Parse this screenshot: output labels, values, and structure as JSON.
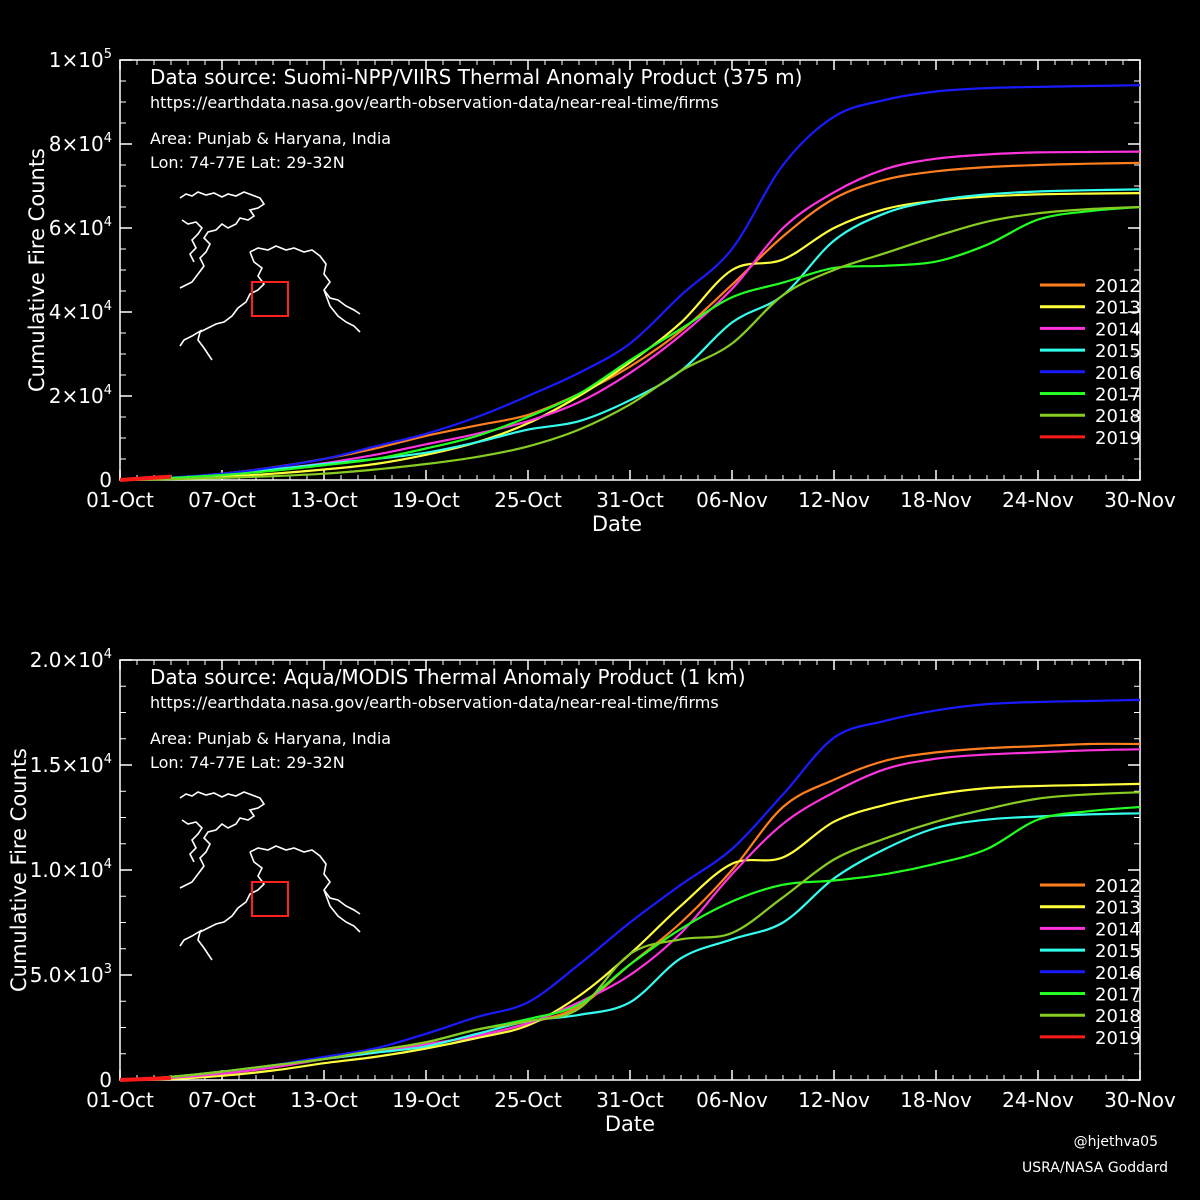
{
  "credits": {
    "handle": "@hjethva05",
    "org": "USRA/NASA Goddard"
  },
  "colors": {
    "2012": "#ff7f1e",
    "2013": "#ffff3c",
    "2014": "#ff33dd",
    "2015": "#33ffee",
    "2016": "#1a1aff",
    "2017": "#22ff22",
    "2018": "#88cc22",
    "2019": "#ff1a1a",
    "map_box": "#ff2020",
    "map_line": "#ffffff"
  },
  "chart_data": [
    {
      "type": "line",
      "title": "Data source: Suomi-NPP/VIIRS Thermal Anomaly Product (375 m)",
      "url": "https://earthdata.nasa.gov/earth-observation-data/near-real-time/firms",
      "area": "Area: Punjab & Haryana, India",
      "lonlat": "Lon: 74-77E Lat: 29-32N",
      "xlabel": "Date",
      "ylabel": "Cumulative Fire Counts",
      "xlim": [
        0,
        60
      ],
      "ylim": [
        0,
        100000
      ],
      "x_ticks": [
        {
          "day": 0,
          "label": "01-Oct"
        },
        {
          "day": 6,
          "label": "07-Oct"
        },
        {
          "day": 12,
          "label": "13-Oct"
        },
        {
          "day": 18,
          "label": "19-Oct"
        },
        {
          "day": 24,
          "label": "25-Oct"
        },
        {
          "day": 30,
          "label": "31-Oct"
        },
        {
          "day": 36,
          "label": "06-Nov"
        },
        {
          "day": 42,
          "label": "12-Nov"
        },
        {
          "day": 48,
          "label": "18-Nov"
        },
        {
          "day": 54,
          "label": "24-Nov"
        },
        {
          "day": 60,
          "label": "30-Nov"
        }
      ],
      "y_ticks": [
        {
          "value": 0,
          "mant": "0",
          "exp": ""
        },
        {
          "value": 20000,
          "mant": "2×10",
          "exp": "4"
        },
        {
          "value": 40000,
          "mant": "4×10",
          "exp": "4"
        },
        {
          "value": 60000,
          "mant": "6×10",
          "exp": "4"
        },
        {
          "value": 80000,
          "mant": "8×10",
          "exp": "4"
        },
        {
          "value": 100000,
          "mant": "1×10",
          "exp": "5"
        }
      ],
      "x_days": [
        0,
        3,
        6,
        9,
        12,
        15,
        18,
        21,
        24,
        27,
        30,
        33,
        36,
        39,
        42,
        45,
        48,
        51,
        54,
        57,
        60
      ],
      "series": [
        {
          "name": "2012",
          "values": [
            0,
            500,
            1500,
            3000,
            5000,
            7500,
            10500,
            13000,
            15500,
            20500,
            27000,
            35500,
            46500,
            58000,
            67000,
            71500,
            73500,
            74500,
            75000,
            75300,
            75500
          ]
        },
        {
          "name": "2013",
          "values": [
            0,
            300,
            800,
            1500,
            2500,
            3800,
            6000,
            9000,
            13500,
            20000,
            28000,
            37500,
            50000,
            52500,
            60000,
            64500,
            66500,
            67500,
            68000,
            68200,
            68300
          ]
        },
        {
          "name": "2014",
          "values": [
            0,
            400,
            1200,
            2500,
            4000,
            6000,
            8500,
            11000,
            14000,
            18500,
            25500,
            34500,
            45500,
            60000,
            68500,
            74000,
            76500,
            77500,
            78000,
            78100,
            78200
          ]
        },
        {
          "name": "2015",
          "values": [
            0,
            500,
            1300,
            2500,
            3800,
            5000,
            6500,
            9000,
            12000,
            14000,
            19000,
            26000,
            37500,
            44000,
            57000,
            63500,
            66500,
            68000,
            68700,
            69000,
            69200
          ]
        },
        {
          "name": "2016",
          "values": [
            0,
            600,
            1500,
            3000,
            5000,
            8000,
            11000,
            15000,
            20000,
            25500,
            32500,
            44000,
            55000,
            75000,
            86500,
            90500,
            92500,
            93300,
            93600,
            93800,
            94000
          ]
        },
        {
          "name": "2017",
          "values": [
            0,
            500,
            1200,
            2200,
            3500,
            5000,
            7500,
            10500,
            15000,
            20500,
            28500,
            36000,
            43500,
            47000,
            50500,
            51000,
            52000,
            56000,
            62000,
            64000,
            65000
          ]
        },
        {
          "name": "2018",
          "values": [
            0,
            200,
            500,
            900,
            1500,
            2500,
            3800,
            5500,
            8000,
            12000,
            18000,
            26000,
            32500,
            44000,
            50000,
            54000,
            58000,
            61500,
            63500,
            64500,
            65000
          ]
        },
        {
          "name": "2019",
          "values": [
            0,
            800
          ]
        }
      ],
      "legend": {
        "placement": "right",
        "entries": [
          "2012",
          "2013",
          "2014",
          "2015",
          "2016",
          "2017",
          "2018",
          "2019"
        ]
      }
    },
    {
      "type": "line",
      "title": "Data source: Aqua/MODIS Thermal Anomaly Product (1 km)",
      "url": "https://earthdata.nasa.gov/earth-observation-data/near-real-time/firms",
      "area": "Area: Punjab & Haryana, India",
      "lonlat": "Lon: 74-77E Lat: 29-32N",
      "xlabel": "Date",
      "ylabel": "Cumulative Fire Counts",
      "xlim": [
        0,
        60
      ],
      "ylim": [
        0,
        20000
      ],
      "x_ticks": [
        {
          "day": 0,
          "label": "01-Oct"
        },
        {
          "day": 6,
          "label": "07-Oct"
        },
        {
          "day": 12,
          "label": "13-Oct"
        },
        {
          "day": 18,
          "label": "19-Oct"
        },
        {
          "day": 24,
          "label": "25-Oct"
        },
        {
          "day": 30,
          "label": "31-Oct"
        },
        {
          "day": 36,
          "label": "06-Nov"
        },
        {
          "day": 42,
          "label": "12-Nov"
        },
        {
          "day": 48,
          "label": "18-Nov"
        },
        {
          "day": 54,
          "label": "24-Nov"
        },
        {
          "day": 60,
          "label": "30-Nov"
        }
      ],
      "y_ticks": [
        {
          "value": 0,
          "mant": "0",
          "exp": ""
        },
        {
          "value": 5000,
          "mant": "5.0×10",
          "exp": "3"
        },
        {
          "value": 10000,
          "mant": "1.0×10",
          "exp": "4"
        },
        {
          "value": 15000,
          "mant": "1.5×10",
          "exp": "4"
        },
        {
          "value": 20000,
          "mant": "2.0×10",
          "exp": "4"
        }
      ],
      "x_days": [
        0,
        3,
        6,
        9,
        12,
        15,
        18,
        21,
        24,
        27,
        30,
        33,
        36,
        39,
        42,
        45,
        48,
        51,
        54,
        57,
        60
      ],
      "series": [
        {
          "name": "2012",
          "values": [
            0,
            100,
            300,
            600,
            1000,
            1300,
            1700,
            2100,
            2700,
            3500,
            5500,
            7500,
            10000,
            13000,
            14300,
            15200,
            15600,
            15800,
            15900,
            16000,
            16000
          ]
        },
        {
          "name": "2013",
          "values": [
            0,
            50,
            200,
            450,
            800,
            1100,
            1500,
            2000,
            2600,
            4000,
            6000,
            8300,
            10300,
            10600,
            12300,
            13100,
            13600,
            13900,
            14000,
            14050,
            14100
          ]
        },
        {
          "name": "2014",
          "values": [
            0,
            100,
            300,
            600,
            1000,
            1300,
            1700,
            2100,
            2700,
            3700,
            5000,
            7000,
            9800,
            12200,
            13700,
            14800,
            15300,
            15500,
            15600,
            15700,
            15750
          ]
        },
        {
          "name": "2015",
          "values": [
            0,
            150,
            400,
            700,
            1000,
            1300,
            1600,
            2200,
            2800,
            3100,
            3700,
            5800,
            6700,
            7500,
            9600,
            11000,
            12000,
            12400,
            12550,
            12650,
            12700
          ]
        },
        {
          "name": "2016",
          "values": [
            0,
            150,
            400,
            700,
            1100,
            1500,
            2200,
            3000,
            3700,
            5500,
            7500,
            9300,
            11000,
            13600,
            16300,
            17100,
            17600,
            17900,
            18000,
            18050,
            18100
          ]
        },
        {
          "name": "2017",
          "values": [
            0,
            150,
            400,
            700,
            1000,
            1400,
            1800,
            2400,
            2900,
            3600,
            5500,
            7200,
            8500,
            9300,
            9500,
            9800,
            10300,
            11000,
            12400,
            12800,
            13000
          ]
        },
        {
          "name": "2018",
          "values": [
            0,
            150,
            400,
            700,
            1000,
            1400,
            1800,
            2400,
            2800,
            3400,
            6000,
            6700,
            7000,
            8700,
            10500,
            11500,
            12300,
            12900,
            13400,
            13600,
            13700
          ]
        },
        {
          "name": "2019",
          "values": [
            0,
            100
          ]
        }
      ],
      "legend": {
        "placement": "right",
        "entries": [
          "2012",
          "2013",
          "2014",
          "2015",
          "2016",
          "2017",
          "2018",
          "2019"
        ]
      }
    }
  ]
}
